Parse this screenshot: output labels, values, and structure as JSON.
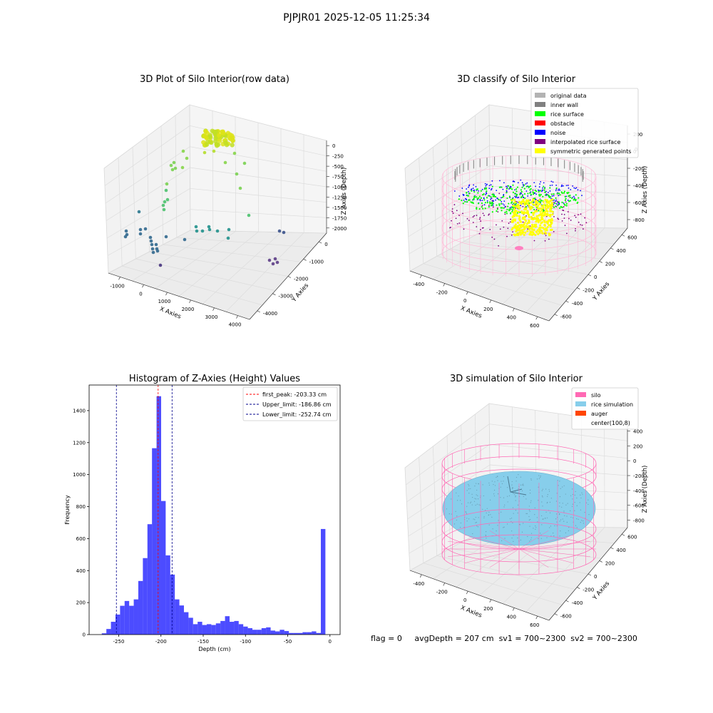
{
  "suptitle": "PJPJR01 2025-12-05 11:25:34",
  "panels": {
    "tl": {
      "title": "3D Plot of Silo Interior(row data)",
      "x_label": "X Axies",
      "y_label": "Y Axies",
      "z_label": "Z Axies (Depth)",
      "x_ticks": [
        "-1000",
        "0",
        "1000",
        "2000",
        "3000",
        "4000"
      ],
      "y_ticks": [
        "0",
        "-1000",
        "-2000",
        "-3000",
        "-4000"
      ],
      "z_ticks": [
        "0",
        "-250",
        "-500",
        "-750",
        "-1000",
        "-1250",
        "-1500",
        "-1750",
        "-2000"
      ]
    },
    "tr": {
      "title": "3D classify of Silo Interior",
      "x_label": "X Axies",
      "y_label": "Y Axies",
      "z_label": "Z Axies (Depth)",
      "x_ticks": [
        "-400",
        "-200",
        "0",
        "200",
        "400",
        "600"
      ],
      "y_ticks": [
        "600",
        "400",
        "200",
        "0",
        "-200",
        "-400",
        "-600"
      ],
      "z_ticks": [
        "200",
        "0",
        "-200",
        "-400",
        "-600",
        "-800"
      ],
      "z_top_partial": "0",
      "legend": [
        {
          "label": "original data",
          "color": "#b3b3b3"
        },
        {
          "label": "inner wall",
          "color": "#808080"
        },
        {
          "label": "rice surface",
          "color": "#00ff00"
        },
        {
          "label": "obstacle",
          "color": "#ff0000"
        },
        {
          "label": "noise",
          "color": "#0000ff"
        },
        {
          "label": "interpolated rice surface",
          "color": "#800080"
        },
        {
          "label": "symmetric generated points",
          "color": "#ffff00"
        }
      ]
    },
    "bl": {
      "title": "Histogram of Z-Axies (Height) Values",
      "legend": [
        {
          "label": "first_peak: -203.33 cm",
          "color": "#ff0000"
        },
        {
          "label": "Upper_limit: -186.86 cm",
          "color": "#00008b"
        },
        {
          "label": "Lower_limit: -252.74 cm",
          "color": "#00008b"
        }
      ]
    },
    "br": {
      "title": "3D simulation of Silo Interior",
      "x_label": "X Axies",
      "y_label": "Y Axies",
      "z_label": "Z Axies (Depth)",
      "x_ticks": [
        "-400",
        "-200",
        "0",
        "200",
        "400",
        "600"
      ],
      "y_ticks": [
        "600",
        "400",
        "200",
        "0",
        "-200",
        "-400",
        "-600"
      ],
      "z_ticks": [
        "400",
        "200",
        "0",
        "-200",
        "-400",
        "-600",
        "-800"
      ],
      "legend": [
        {
          "label": "silo",
          "color": "#ff69b4"
        },
        {
          "label": "rice simulation",
          "color": "#87ceeb"
        },
        {
          "label": "auger",
          "color": "#ff4500"
        },
        {
          "label": "center(100,8)",
          "color": ""
        }
      ]
    }
  },
  "footer": {
    "flag": "flag = 0",
    "avg": "avgDepth = 207 cm",
    "sv1": "sv1 = 700~2300",
    "sv2": "sv2 = 700~2300"
  },
  "chart_data": [
    {
      "type": "scatter",
      "title": "3D Plot of Silo Interior(row data)",
      "xlabel": "X Axies",
      "ylabel": "Y Axies",
      "zlabel": "Z Axies (Depth)",
      "xlim": [
        -1300,
        4200
      ],
      "ylim": [
        -4500,
        800
      ],
      "zlim": [
        -2150,
        100
      ],
      "colormap": "viridis"
    },
    {
      "type": "scatter",
      "title": "3D classify of Silo Interior",
      "xlabel": "X Axies",
      "ylabel": "Y Axies",
      "zlabel": "Z Axies (Depth)",
      "series": [
        {
          "name": "original data"
        },
        {
          "name": "inner wall"
        },
        {
          "name": "rice surface"
        },
        {
          "name": "obstacle"
        },
        {
          "name": "noise"
        },
        {
          "name": "interpolated rice surface"
        },
        {
          "name": "symmetric generated points"
        }
      ]
    },
    {
      "type": "bar",
      "title": "Histogram of Z-Axies (Height) Values",
      "xlabel": "Depth (cm)",
      "ylabel": "Frequency",
      "xlim": [
        -285,
        12
      ],
      "ylim": [
        0,
        1560
      ],
      "x_ticks": [
        -250,
        -200,
        -150,
        -100,
        -50,
        0
      ],
      "y_ticks": [
        0,
        200,
        400,
        600,
        800,
        1000,
        1200,
        1400
      ],
      "bin_start": -270.0,
      "bin_width": 5.4,
      "values": [
        8,
        35,
        80,
        125,
        180,
        210,
        180,
        220,
        335,
        478,
        690,
        1165,
        1490,
        835,
        495,
        375,
        220,
        182,
        140,
        105,
        65,
        80,
        60,
        65,
        60,
        70,
        85,
        115,
        80,
        85,
        65,
        50,
        40,
        30,
        30,
        40,
        45,
        25,
        20,
        30,
        22,
        10,
        10,
        10,
        15,
        15,
        20,
        10,
        660
      ],
      "vlines": [
        {
          "name": "first_peak: -203.33 cm",
          "x": -203.33,
          "color": "#ff0000"
        },
        {
          "name": "Upper_limit: -186.86 cm",
          "x": -186.86,
          "color": "#00008b"
        },
        {
          "name": "Lower_limit: -252.74 cm",
          "x": -252.74,
          "color": "#00008b"
        }
      ]
    },
    {
      "type": "other",
      "title": "3D simulation of Silo Interior",
      "xlabel": "X Axies",
      "ylabel": "Y Axies",
      "zlabel": "Z Axies (Depth)",
      "series": [
        {
          "name": "silo"
        },
        {
          "name": "rice simulation"
        },
        {
          "name": "auger"
        },
        {
          "name": "center(100,8)"
        }
      ]
    }
  ]
}
